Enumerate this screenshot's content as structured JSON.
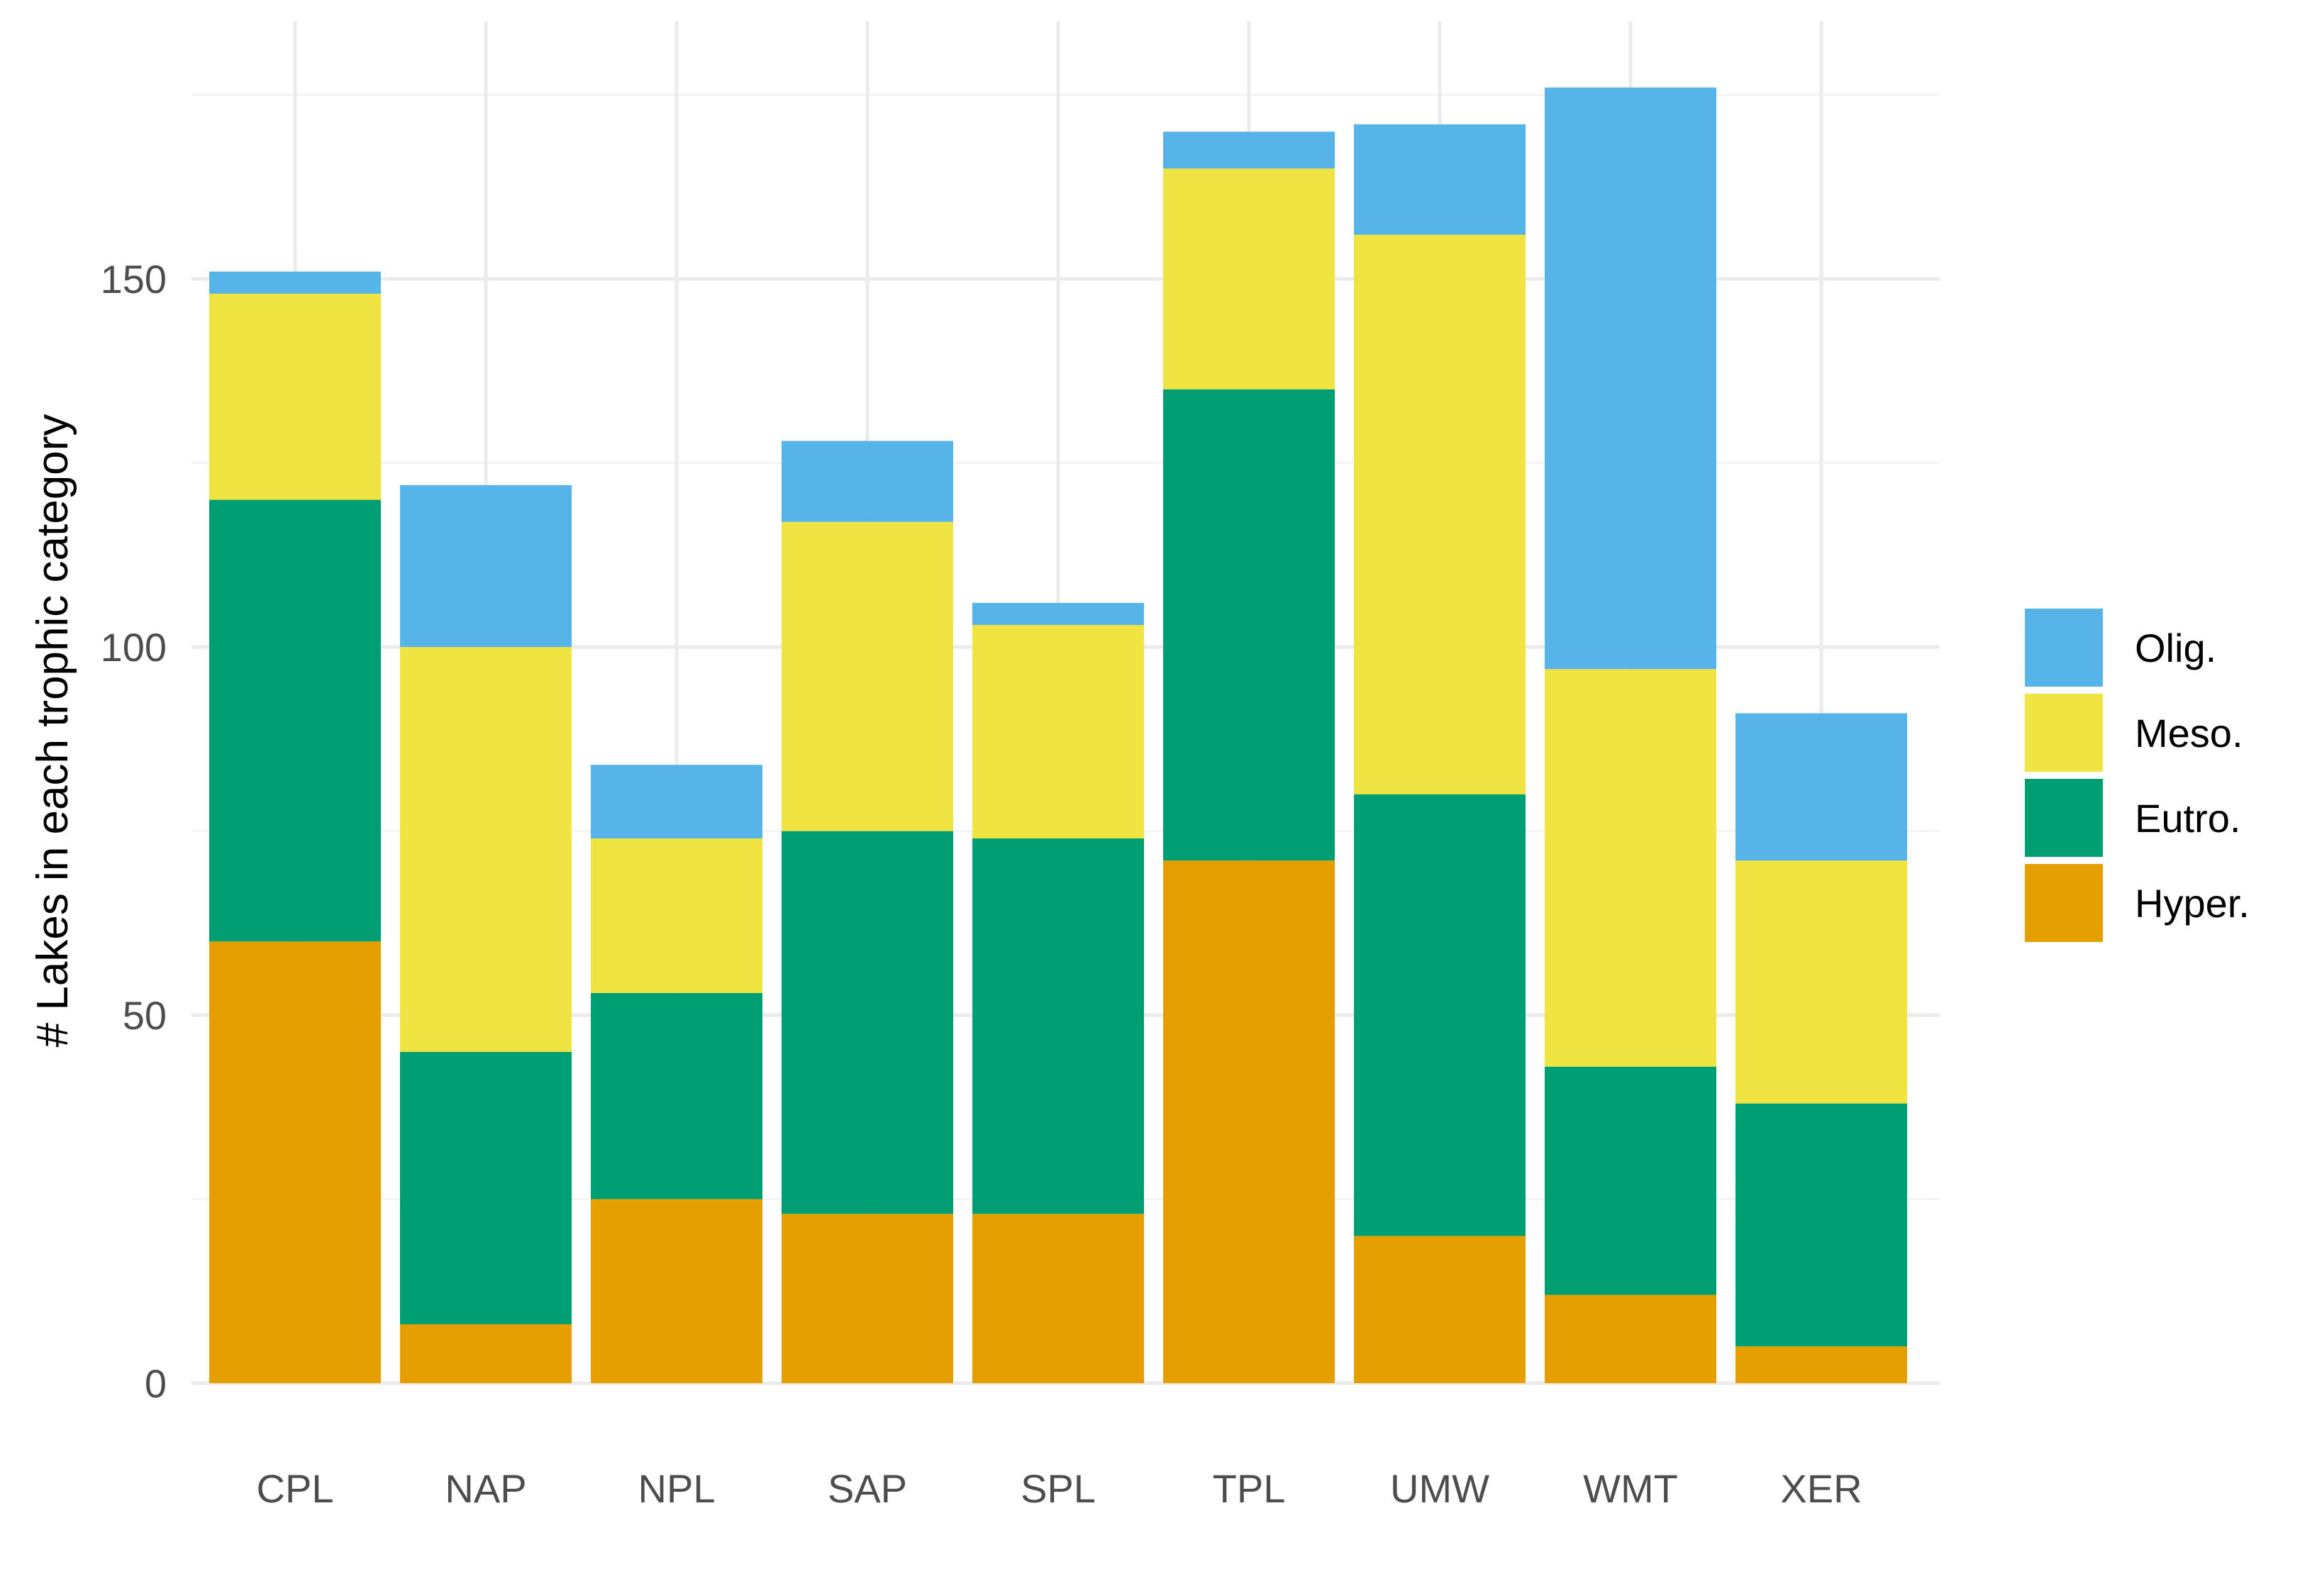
{
  "chart_data": {
    "type": "bar",
    "stacked": true,
    "title": "",
    "xlabel": "",
    "ylabel": "# Lakes in each trophic category",
    "ylim": [
      0,
      185
    ],
    "yticks": [
      0,
      50,
      100,
      150
    ],
    "grid": true,
    "legend_position": "right",
    "categories": [
      "CPL",
      "NAP",
      "NPL",
      "SAP",
      "SPL",
      "TPL",
      "UMW",
      "WMT",
      "XER"
    ],
    "series": [
      {
        "name": "Hyper.",
        "color": "#E69F00",
        "values": [
          60,
          8,
          25,
          23,
          23,
          71,
          20,
          12,
          5
        ]
      },
      {
        "name": "Eutro.",
        "color": "#009E73",
        "values": [
          60,
          37,
          28,
          52,
          51,
          64,
          60,
          31,
          33
        ]
      },
      {
        "name": "Meso.",
        "color": "#F0E442",
        "values": [
          28,
          55,
          21,
          42,
          29,
          30,
          76,
          54,
          33
        ]
      },
      {
        "name": "Olig.",
        "color": "#56B4E9",
        "values": [
          3,
          22,
          10,
          11,
          3,
          5,
          15,
          79,
          20
        ]
      }
    ],
    "legend_order": [
      "Olig.",
      "Meso.",
      "Eutro.",
      "Hyper."
    ]
  }
}
